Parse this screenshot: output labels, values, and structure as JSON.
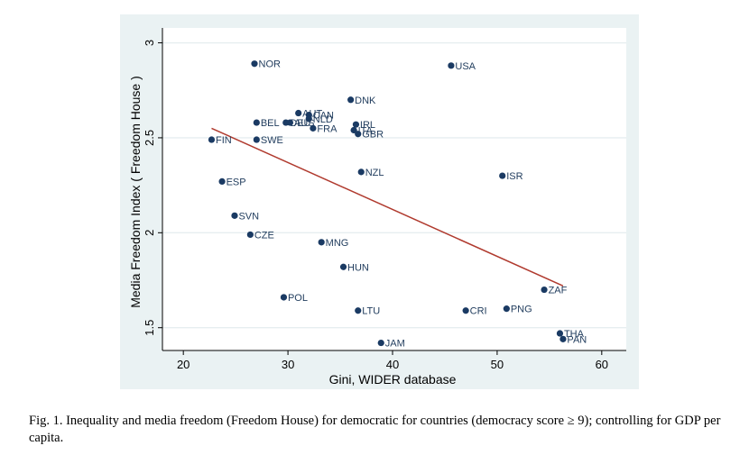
{
  "chart_data": {
    "type": "scatter",
    "xlabel": "Gini, WIDER database",
    "ylabel": "Media Freedom Index ( Freedom House )",
    "xlim": [
      18,
      62
    ],
    "ylim": [
      1.38,
      3.05
    ],
    "xticks": [
      20,
      30,
      40,
      50,
      60
    ],
    "yticks": [
      1.5,
      2,
      2.5,
      3
    ],
    "xtick_labels": [
      "20",
      "30",
      "40",
      "50",
      "60"
    ],
    "ytick_labels": [
      "1.5",
      "2",
      "2.5",
      "3"
    ],
    "grid": true,
    "point_color": "#1a3a63",
    "fit_color": "#b03a2e",
    "points": [
      {
        "label": "NOR",
        "x": 26.8,
        "y": 2.89
      },
      {
        "label": "USA",
        "x": 45.6,
        "y": 2.88
      },
      {
        "label": "DNK",
        "x": 36.0,
        "y": 2.7
      },
      {
        "label": "AUT",
        "x": 31.0,
        "y": 2.63
      },
      {
        "label": "CAN",
        "x": 32.0,
        "y": 2.62
      },
      {
        "label": "NLD",
        "x": 32.0,
        "y": 2.6
      },
      {
        "label": "BEL",
        "x": 27.0,
        "y": 2.58
      },
      {
        "label": "DEU",
        "x": 29.8,
        "y": 2.58
      },
      {
        "label": "AUS",
        "x": 30.2,
        "y": 2.58
      },
      {
        "label": "FRA",
        "x": 32.4,
        "y": 2.55
      },
      {
        "label": "IRL",
        "x": 36.5,
        "y": 2.57
      },
      {
        "label": "ITA",
        "x": 36.3,
        "y": 2.54
      },
      {
        "label": "GBR",
        "x": 36.7,
        "y": 2.52
      },
      {
        "label": "FIN",
        "x": 22.7,
        "y": 2.49
      },
      {
        "label": "SWE",
        "x": 27.0,
        "y": 2.49
      },
      {
        "label": "NZL",
        "x": 37.0,
        "y": 2.32
      },
      {
        "label": "ISR",
        "x": 50.5,
        "y": 2.3
      },
      {
        "label": "ESP",
        "x": 23.7,
        "y": 2.27
      },
      {
        "label": "SVN",
        "x": 24.9,
        "y": 2.09
      },
      {
        "label": "CZE",
        "x": 26.4,
        "y": 1.99
      },
      {
        "label": "MNG",
        "x": 33.2,
        "y": 1.95
      },
      {
        "label": "HUN",
        "x": 35.3,
        "y": 1.82
      },
      {
        "label": "ZAF",
        "x": 54.5,
        "y": 1.7
      },
      {
        "label": "POL",
        "x": 29.6,
        "y": 1.66
      },
      {
        "label": "LTU",
        "x": 36.7,
        "y": 1.59
      },
      {
        "label": "CRI",
        "x": 47.0,
        "y": 1.59
      },
      {
        "label": "PNG",
        "x": 50.9,
        "y": 1.6
      },
      {
        "label": "THA",
        "x": 56.0,
        "y": 1.47
      },
      {
        "label": "PAN",
        "x": 56.3,
        "y": 1.44
      },
      {
        "label": "JAM",
        "x": 38.9,
        "y": 1.42
      }
    ],
    "fit_line": {
      "x": [
        22.7,
        56.3
      ],
      "y": [
        2.55,
        1.72
      ]
    }
  },
  "caption": "Fig. 1. Inequality and media freedom (Freedom House) for democratic for countries (democracy score ≥ 9); controlling for GDP per capita."
}
